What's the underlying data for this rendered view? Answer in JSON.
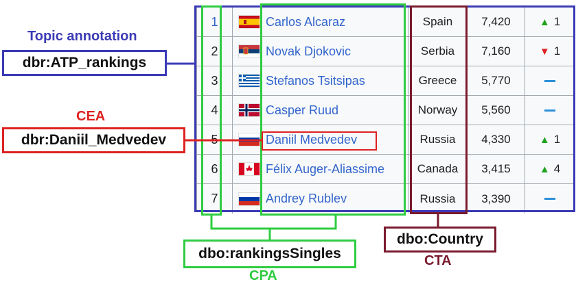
{
  "table": {
    "rows": [
      {
        "rank": "1",
        "flag": "spain-flag-icon",
        "player": "Carlos Alcaraz",
        "country": "Spain",
        "points": "7,420",
        "move_dir": "up",
        "move": "1"
      },
      {
        "rank": "2",
        "flag": "serbia-flag-icon",
        "player": "Novak Djokovic",
        "country": "Serbia",
        "points": "7,160",
        "move_dir": "down",
        "move": "1"
      },
      {
        "rank": "3",
        "flag": "greece-flag-icon",
        "player": "Stefanos Tsitsipas",
        "country": "Greece",
        "points": "5,770",
        "move_dir": "none",
        "move": ""
      },
      {
        "rank": "4",
        "flag": "norway-flag-icon",
        "player": "Casper Ruud",
        "country": "Norway",
        "points": "5,560",
        "move_dir": "none",
        "move": ""
      },
      {
        "rank": "5",
        "flag": "russia-flag-icon",
        "player": "Daniil Medvedev",
        "country": "Russia",
        "points": "4,330",
        "move_dir": "up",
        "move": "1"
      },
      {
        "rank": "6",
        "flag": "canada-flag-icon",
        "player": "Félix Auger-Aliassime",
        "country": "Canada",
        "points": "3,415",
        "move_dir": "up",
        "move": "4"
      },
      {
        "rank": "7",
        "flag": "russia-flag-icon",
        "player": "Andrey Rublev",
        "country": "Russia",
        "points": "3,390",
        "move_dir": "none",
        "move": ""
      }
    ]
  },
  "annotations": {
    "topic": {
      "caption": "Topic annotation",
      "label": "dbr:ATP_rankings",
      "color": "#3b3bb5"
    },
    "cea": {
      "caption": "CEA",
      "label": "dbr:Daniil_Medvedev",
      "color": "#dd2222"
    },
    "cpa": {
      "caption": "CPA",
      "label": "dbo:rankingsSingles",
      "color": "#2ecc40"
    },
    "cta": {
      "caption": "CTA",
      "label": "dbo:Country",
      "color": "#7a1a2e"
    }
  }
}
